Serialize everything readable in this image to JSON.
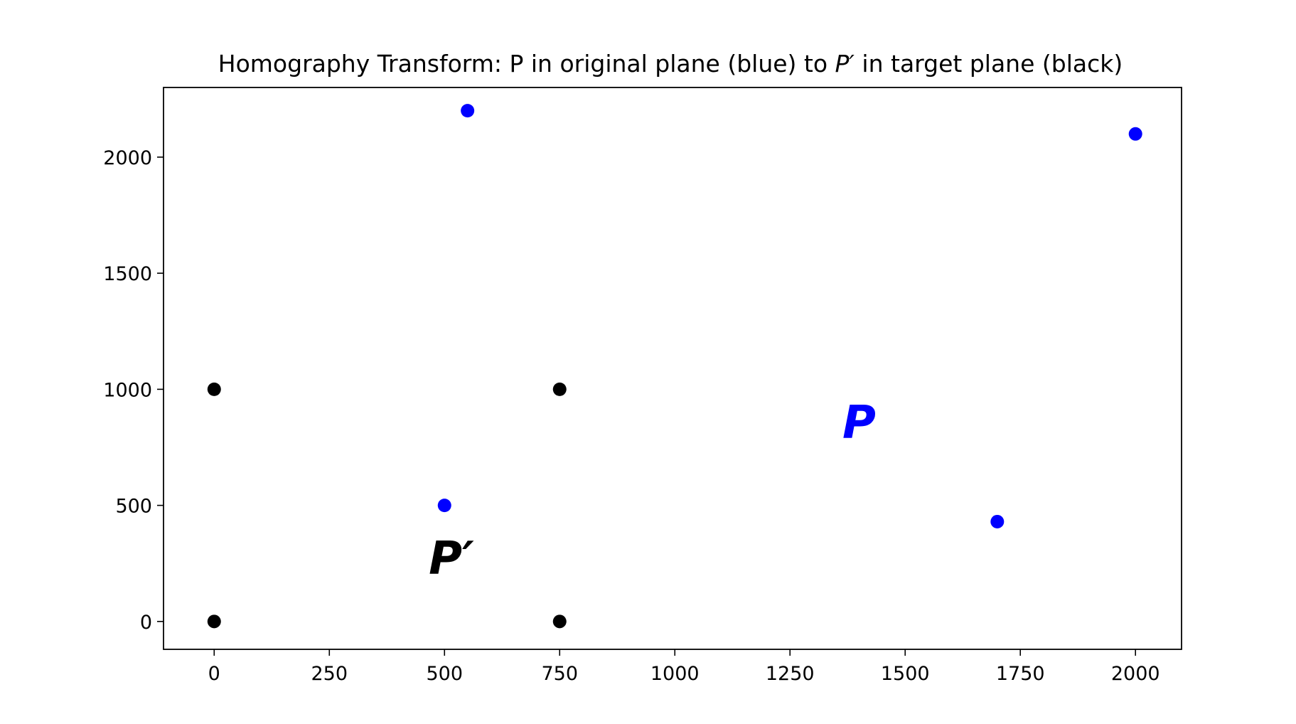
{
  "chart_data": {
    "type": "scatter",
    "title": {
      "prefix": "Homography Transform: P in original plane (blue) to ",
      "math_symbol": "P′",
      "suffix": " in target plane (black)"
    },
    "xlabel": "",
    "ylabel": "",
    "xlim": [
      -110,
      2100
    ],
    "ylim": [
      -120,
      2300
    ],
    "x_ticks": [
      0,
      250,
      500,
      750,
      1000,
      1250,
      1500,
      1750,
      2000
    ],
    "y_ticks": [
      0,
      500,
      1000,
      1500,
      2000
    ],
    "grid": false,
    "legend": "none",
    "series": [
      {
        "color": "#0000ff",
        "points": [
          {
            "x": 550,
            "y": 2200
          },
          {
            "x": 2000,
            "y": 2100
          },
          {
            "x": 500,
            "y": 500
          },
          {
            "x": 1700,
            "y": 430
          }
        ]
      },
      {
        "color": "#000000",
        "points": [
          {
            "x": 0,
            "y": 1000
          },
          {
            "x": 750,
            "y": 1000
          },
          {
            "x": 0,
            "y": 0
          },
          {
            "x": 750,
            "y": 0
          }
        ]
      }
    ],
    "annotations": [
      {
        "text": "P",
        "x": 1400,
        "y": 790,
        "color": "#0000ff"
      },
      {
        "text": "P′",
        "x": 515,
        "y": 205,
        "color": "#000000"
      }
    ]
  }
}
